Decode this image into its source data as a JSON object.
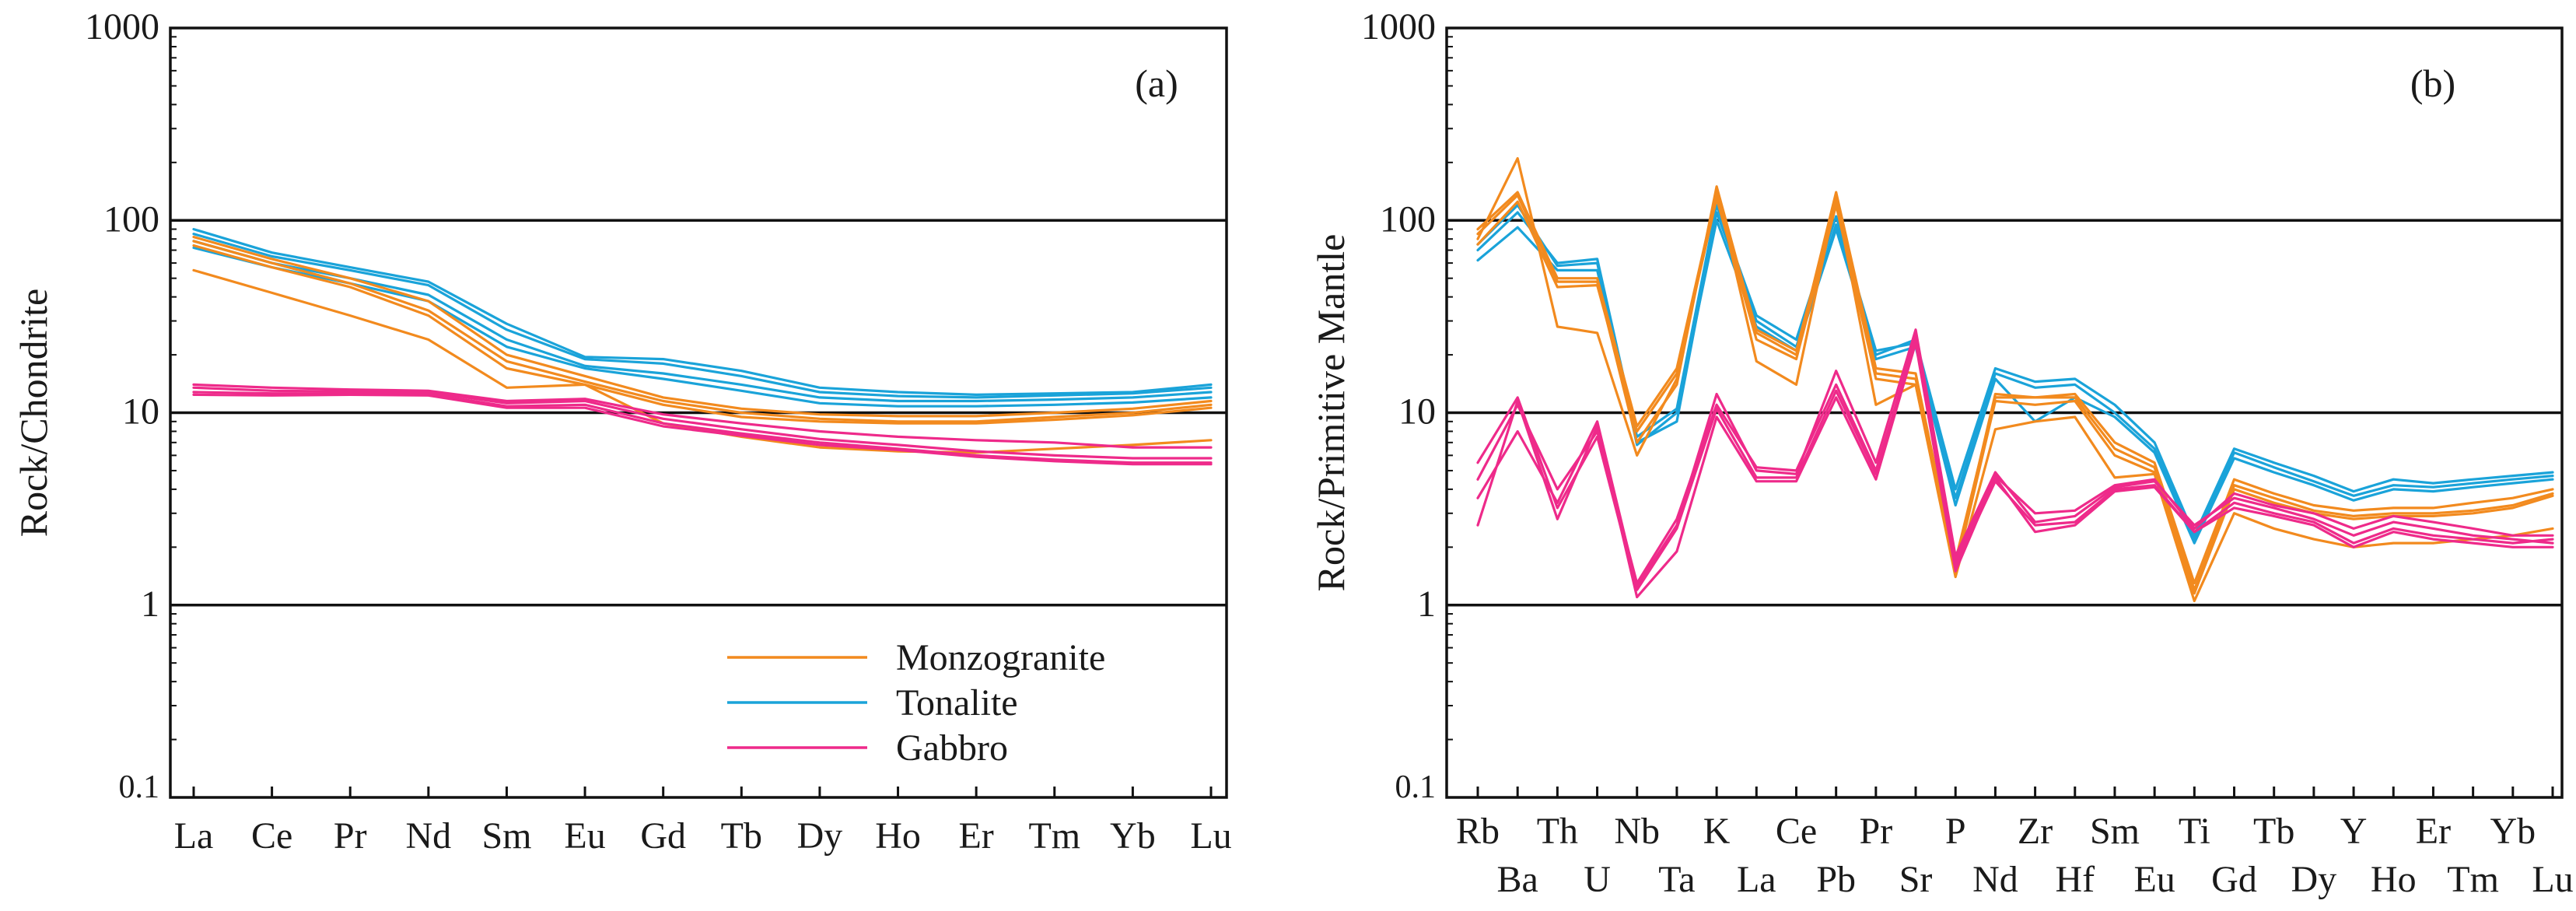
{
  "chart_data": [
    {
      "type": "line",
      "panel_label": "(a)",
      "ylabel": "Rock/Chondrite",
      "xlabel": "",
      "yscale": "log",
      "ylim": [
        0.1,
        1000
      ],
      "ytick_labels": [
        "0.1",
        "1",
        "10",
        "100",
        "1000"
      ],
      "yticks": [
        0.1,
        1,
        10,
        100,
        1000
      ],
      "gridlines_y": [
        1,
        10,
        100
      ],
      "categories": [
        "La",
        "Ce",
        "Pr",
        "Nd",
        "Sm",
        "Eu",
        "Gd",
        "Tb",
        "Dy",
        "Ho",
        "Er",
        "Tm",
        "Yb",
        "Lu"
      ],
      "legend": {
        "position": "bottom-right",
        "entries": [
          {
            "label": "Monzogranite",
            "color": "#f28a1e"
          },
          {
            "label": "Tonalite",
            "color": "#1aa3d9"
          },
          {
            "label": "Gabbro",
            "color": "#ee2a8a"
          }
        ]
      },
      "series": [
        {
          "group": "Tonalite",
          "color": "#1aa3d9",
          "values": [
            90,
            68,
            57,
            48,
            29,
            19.5,
            19,
            16.5,
            13.5,
            12.8,
            12.4,
            12.6,
            12.8,
            14
          ]
        },
        {
          "group": "Tonalite",
          "color": "#1aa3d9",
          "values": [
            85,
            65,
            55,
            46,
            27,
            19,
            18,
            15.5,
            12.8,
            12.2,
            12,
            12.3,
            12.6,
            13.5
          ]
        },
        {
          "group": "Tonalite",
          "color": "#1aa3d9",
          "values": [
            78,
            60,
            50,
            41,
            24,
            17.5,
            16,
            14,
            12,
            11.5,
            11.5,
            11.7,
            12,
            12.8
          ]
        },
        {
          "group": "Tonalite",
          "color": "#1aa3d9",
          "values": [
            72,
            57,
            47,
            38,
            22,
            17,
            15,
            13,
            11.2,
            10.8,
            10.8,
            11,
            11.3,
            12
          ]
        },
        {
          "group": "Monzogranite",
          "color": "#f28a1e",
          "values": [
            82,
            63,
            50,
            38,
            20,
            15.5,
            12,
            10.5,
            9.8,
            9.6,
            9.6,
            10,
            10.5,
            11.5
          ]
        },
        {
          "group": "Monzogranite",
          "color": "#f28a1e",
          "values": [
            78,
            60,
            47,
            34,
            18.5,
            14.5,
            11.5,
            10,
            9.3,
            9,
            9,
            9.5,
            10,
            11
          ]
        },
        {
          "group": "Monzogranite",
          "color": "#f28a1e",
          "values": [
            74,
            57,
            45,
            32,
            17,
            14,
            11,
            9.5,
            9,
            8.8,
            8.8,
            9.2,
            9.7,
            10.6
          ]
        },
        {
          "group": "Monzogranite",
          "color": "#f28a1e",
          "values": [
            55,
            42,
            32,
            24,
            13.5,
            14,
            8.8,
            7.5,
            6.6,
            6.3,
            6.2,
            6.5,
            6.8,
            7.2
          ]
        },
        {
          "group": "Gabbro",
          "color": "#ee2a8a",
          "values": [
            14,
            13.5,
            13.2,
            13,
            11.5,
            11.8,
            9.8,
            8.8,
            8,
            7.5,
            7.2,
            7,
            6.6,
            6.6
          ]
        },
        {
          "group": "Gabbro",
          "color": "#ee2a8a",
          "values": [
            13.5,
            13,
            12.9,
            12.8,
            11.2,
            11.5,
            9.3,
            8.2,
            7.3,
            6.8,
            6.3,
            6,
            5.8,
            5.8
          ]
        },
        {
          "group": "Gabbro",
          "color": "#ee2a8a",
          "values": [
            12.8,
            12.6,
            12.6,
            12.5,
            10.8,
            11,
            8.8,
            7.8,
            7,
            6.5,
            6,
            5.7,
            5.5,
            5.5
          ]
        },
        {
          "group": "Gabbro",
          "color": "#ee2a8a",
          "values": [
            12.4,
            12.3,
            12.4,
            12.3,
            10.6,
            10.6,
            8.5,
            7.6,
            6.8,
            6.4,
            5.9,
            5.6,
            5.4,
            5.4
          ]
        }
      ]
    },
    {
      "type": "line",
      "panel_label": "(b)",
      "ylabel": "Rock/Primitive Mantle",
      "xlabel": "",
      "yscale": "log",
      "ylim": [
        0.1,
        1000
      ],
      "ytick_labels": [
        "0.1",
        "1",
        "10",
        "100",
        "1000"
      ],
      "yticks": [
        0.1,
        1,
        10,
        100,
        1000
      ],
      "gridlines_y": [
        1,
        10,
        100
      ],
      "categories": [
        "Rb",
        "Ba",
        "Th",
        "U",
        "Nb",
        "Ta",
        "K",
        "La",
        "Ce",
        "Pb",
        "Pr",
        "Sr",
        "P",
        "Nd",
        "Zr",
        "Hf",
        "Sm",
        "Eu",
        "Ti",
        "Gd",
        "Tb",
        "Dy",
        "Y",
        "Ho",
        "Er",
        "Tm",
        "Yb",
        "Lu"
      ],
      "tick_labels_top": [
        "Rb",
        "Th",
        "Nb",
        "K",
        "Ce",
        "Pr",
        "P",
        "Zr",
        "Sm",
        "Ti",
        "Tb",
        "Y",
        "Er",
        "Yb"
      ],
      "tick_labels_bottom": [
        "Ba",
        "U",
        "Ta",
        "La",
        "Pb",
        "Sr",
        "Nd",
        "Hf",
        "Eu",
        "Gd",
        "Dy",
        "Ho",
        "Tm",
        "Lu"
      ],
      "series": [
        {
          "group": "Tonalite",
          "color": "#1aa3d9",
          "values": [
            62,
            92,
            55,
            55,
            7,
            9,
            110,
            30,
            22,
            95,
            20,
            24,
            4,
            17,
            14.5,
            15,
            11,
            7,
            2.3,
            6.5,
            5.5,
            4.7,
            3.9,
            4.5,
            4.3,
            4.5,
            4.7,
            4.9
          ]
        },
        {
          "group": "Tonalite",
          "color": "#1aa3d9",
          "values": [
            70,
            110,
            60,
            63,
            7.5,
            10.5,
            120,
            32,
            24,
            105,
            21,
            23,
            3.6,
            16,
            13.5,
            14,
            10,
            6.5,
            2.2,
            6.2,
            5.2,
            4.4,
            3.7,
            4.2,
            4.1,
            4.3,
            4.5,
            4.7
          ]
        },
        {
          "group": "Tonalite",
          "color": "#1aa3d9",
          "values": [
            75,
            120,
            58,
            60,
            6.8,
            10,
            100,
            28,
            21,
            90,
            19,
            22,
            3.3,
            15,
            9,
            12,
            9.5,
            6.2,
            2.1,
            5.8,
            4.9,
            4.2,
            3.5,
            4,
            3.9,
            4.1,
            4.3,
            4.5
          ]
        },
        {
          "group": "Monzogranite",
          "color": "#f28a1e",
          "values": [
            80,
            210,
            28,
            26,
            6,
            15,
            145,
            18.5,
            14,
            130,
            11,
            14,
            1.4,
            8.2,
            9,
            9.5,
            4.6,
            4.8,
            1.05,
            3,
            2.5,
            2.2,
            2,
            2.1,
            2.1,
            2.2,
            2.3,
            2.5
          ]
        },
        {
          "group": "Monzogranite",
          "color": "#f28a1e",
          "values": [
            85,
            135,
            48,
            48,
            7,
            14,
            150,
            26,
            20,
            140,
            17,
            16,
            1.6,
            12.5,
            12,
            12,
            6.5,
            5.2,
            1.2,
            4.2,
            3.6,
            3.1,
            2.9,
            3,
            3,
            3.1,
            3.3,
            3.8
          ]
        },
        {
          "group": "Monzogranite",
          "color": "#f28a1e",
          "values": [
            75,
            125,
            45,
            46,
            8,
            16,
            130,
            24,
            19,
            120,
            15,
            14,
            1.5,
            11.5,
            11,
            11.5,
            6,
            4.9,
            1.15,
            4,
            3.4,
            3,
            2.8,
            2.9,
            2.9,
            3,
            3.2,
            3.7
          ]
        },
        {
          "group": "Monzogranite",
          "color": "#f28a1e",
          "values": [
            90,
            140,
            50,
            50,
            8.5,
            17,
            140,
            27,
            21,
            130,
            16,
            15,
            1.7,
            12,
            12,
            12.5,
            7,
            5.5,
            1.3,
            4.5,
            3.8,
            3.3,
            3.1,
            3.2,
            3.2,
            3.4,
            3.6,
            4
          ]
        },
        {
          "group": "Gabbro",
          "color": "#ee2a8a",
          "values": [
            2.6,
            11.5,
            2.8,
            8.5,
            1.1,
            1.9,
            9.5,
            4.4,
            4.4,
            12,
            4.5,
            23,
            1.5,
            4.6,
            2.4,
            2.6,
            3.9,
            4.1,
            2.4,
            3.2,
            2.9,
            2.6,
            2,
            2.4,
            2.2,
            2.1,
            2,
            2
          ]
        },
        {
          "group": "Gabbro",
          "color": "#ee2a8a",
          "values": [
            3.6,
            8,
            3.4,
            9,
            1.25,
            2.6,
            12.5,
            5,
            4.8,
            16.5,
            5.5,
            27,
            1.8,
            4.9,
            2.7,
            2.9,
            4.1,
            4.4,
            2.6,
            3.6,
            3.2,
            2.8,
            2.3,
            2.7,
            2.5,
            2.3,
            2.2,
            2.1
          ]
        },
        {
          "group": "Gabbro",
          "color": "#ee2a8a",
          "values": [
            4.5,
            11,
            4,
            8,
            1.3,
            2.8,
            11,
            5.2,
            5,
            14,
            5,
            24,
            1.7,
            4.7,
            3,
            3.1,
            4.2,
            4.5,
            2.5,
            3.8,
            3.3,
            3,
            2.5,
            2.9,
            2.7,
            2.5,
            2.3,
            2.3
          ]
        },
        {
          "group": "Gabbro",
          "color": "#ee2a8a",
          "values": [
            5.5,
            12,
            3.2,
            7.5,
            1.2,
            2.5,
            10.5,
            4.6,
            4.6,
            13,
            4.8,
            25,
            1.6,
            4.4,
            2.6,
            2.7,
            4,
            4.2,
            2.4,
            3.4,
            3,
            2.7,
            2.1,
            2.5,
            2.3,
            2.2,
            2.1,
            2.2
          ]
        }
      ]
    }
  ]
}
